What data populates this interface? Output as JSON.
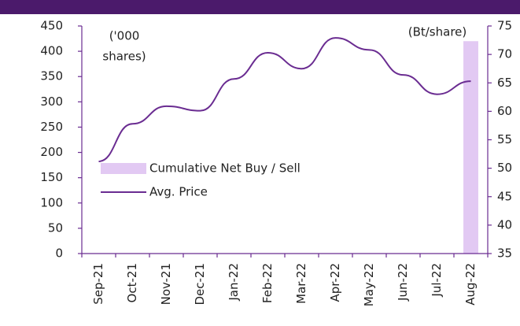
{
  "chart_data": {
    "type": "bar_line",
    "categories": [
      "Sep-21",
      "Oct-21",
      "Nov-21",
      "Dec-21",
      "Jan-22",
      "Feb-22",
      "Mar-22",
      "Apr-22",
      "May-22",
      "Jun-22",
      "Jul-22",
      "Aug-22"
    ],
    "series": [
      {
        "name": "Cumulative Net Buy / Sell",
        "type": "bar",
        "color": "#e2c9f3",
        "values": [
          0,
          0,
          0,
          0,
          0,
          0,
          0,
          0,
          0,
          0,
          0,
          420
        ]
      },
      {
        "name": "Avg. Price",
        "type": "line",
        "axis": "y2",
        "color": "#6a2c91",
        "values": [
          51.2,
          57.8,
          60.9,
          60.1,
          65.7,
          70.3,
          67.5,
          72.9,
          70.8,
          66.4,
          63.0,
          65.3
        ]
      }
    ],
    "ylabel": [
      "('000",
      "shares)"
    ],
    "y2label": "(Bt/share)",
    "ylim": [
      0,
      450
    ],
    "yticks": [
      0,
      50,
      100,
      150,
      200,
      250,
      300,
      350,
      400,
      450
    ],
    "y2lim": [
      35,
      75
    ],
    "y2ticks": [
      35,
      40,
      45,
      50,
      55,
      60,
      65,
      70,
      75
    ]
  }
}
